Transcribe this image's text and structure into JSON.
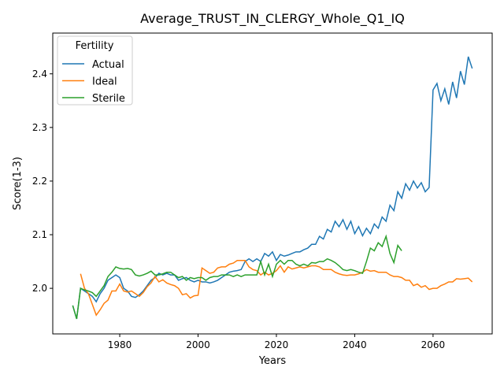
{
  "chart_data": {
    "type": "line",
    "title": "Average_TRUST_IN_CLERGY_Whole_Q1_IQ",
    "xlabel": "Years",
    "ylabel": "Score(1-3)",
    "legend_title": "Fertility",
    "legend": "upper left",
    "x": [
      1968,
      1969,
      1970,
      1971,
      1972,
      1973,
      1974,
      1975,
      1976,
      1977,
      1978,
      1979,
      1980,
      1981,
      1982,
      1983,
      1984,
      1985,
      1986,
      1987,
      1988,
      1989,
      1990,
      1991,
      1992,
      1993,
      1994,
      1995,
      1996,
      1997,
      1998,
      1999,
      2000,
      2001,
      2002,
      2003,
      2004,
      2005,
      2006,
      2007,
      2008,
      2009,
      2010,
      2011,
      2012,
      2013,
      2014,
      2015,
      2016,
      2017,
      2018,
      2019,
      2020,
      2021,
      2022,
      2023,
      2024,
      2025,
      2026,
      2027,
      2028,
      2029,
      2030,
      2031,
      2032,
      2033,
      2034,
      2035,
      2036,
      2037,
      2038,
      2039,
      2040,
      2041,
      2042,
      2043,
      2044,
      2045,
      2046,
      2047,
      2048,
      2049,
      2050,
      2051,
      2052,
      2053,
      2054,
      2055,
      2056,
      2057,
      2058,
      2059,
      2060,
      2061,
      2062,
      2063,
      2064,
      2065,
      2066,
      2067,
      2068,
      2069,
      2070
    ],
    "series": [
      {
        "name": "Actual",
        "color": "#1f77b4",
        "values": [
          1.968,
          1.943,
          2.0,
          1.995,
          1.99,
          1.985,
          1.975,
          1.99,
          2.0,
          2.015,
          2.02,
          2.025,
          2.02,
          2.0,
          1.995,
          1.985,
          1.983,
          1.988,
          1.995,
          2.005,
          2.015,
          2.02,
          2.028,
          2.025,
          2.028,
          2.025,
          2.025,
          2.015,
          2.018,
          2.02,
          2.015,
          2.012,
          2.015,
          2.012,
          2.012,
          2.01,
          2.012,
          2.015,
          2.02,
          2.025,
          2.03,
          2.032,
          2.033,
          2.035,
          2.05,
          2.055,
          2.05,
          2.055,
          2.05,
          2.065,
          2.06,
          2.068,
          2.052,
          2.063,
          2.06,
          2.062,
          2.065,
          2.068,
          2.068,
          2.072,
          2.075,
          2.082,
          2.082,
          2.097,
          2.092,
          2.11,
          2.105,
          2.125,
          2.115,
          2.128,
          2.11,
          2.125,
          2.102,
          2.115,
          2.098,
          2.112,
          2.102,
          2.12,
          2.112,
          2.133,
          2.125,
          2.155,
          2.145,
          2.18,
          2.168,
          2.195,
          2.183,
          2.2,
          2.187,
          2.197,
          2.18,
          2.188,
          2.37,
          2.382,
          2.35,
          2.372,
          2.343,
          2.385,
          2.355,
          2.405,
          2.38,
          2.432,
          2.41
        ]
      },
      {
        "name": "Ideal",
        "color": "#ff7f0e",
        "values": [
          null,
          null,
          2.027,
          2.0,
          1.99,
          1.97,
          1.95,
          1.96,
          1.972,
          1.978,
          1.995,
          1.995,
          2.008,
          1.995,
          1.993,
          1.995,
          1.99,
          1.985,
          1.992,
          2.003,
          2.01,
          2.022,
          2.012,
          2.016,
          2.01,
          2.007,
          2.005,
          2.0,
          1.988,
          1.99,
          1.982,
          1.986,
          1.987,
          2.038,
          2.033,
          2.028,
          2.03,
          2.038,
          2.04,
          2.04,
          2.045,
          2.047,
          2.052,
          2.052,
          2.052,
          2.04,
          2.035,
          2.033,
          2.025,
          2.03,
          2.025,
          2.028,
          2.033,
          2.042,
          2.03,
          2.04,
          2.036,
          2.038,
          2.04,
          2.038,
          2.04,
          2.042,
          2.042,
          2.04,
          2.035,
          2.035,
          2.035,
          2.03,
          2.027,
          2.025,
          2.024,
          2.025,
          2.025,
          2.027,
          2.03,
          2.035,
          2.032,
          2.033,
          2.03,
          2.03,
          2.03,
          2.025,
          2.022,
          2.022,
          2.02,
          2.015,
          2.015,
          2.005,
          2.008,
          2.002,
          2.005,
          1.998,
          2.0,
          2.0,
          2.005,
          2.008,
          2.012,
          2.012,
          2.018,
          2.017,
          2.018,
          2.019,
          2.012
        ]
      },
      {
        "name": "Sterile",
        "color": "#2ca02c",
        "values": [
          1.968,
          1.943,
          2.0,
          1.997,
          1.995,
          1.992,
          1.985,
          1.995,
          2.005,
          2.022,
          2.03,
          2.04,
          2.037,
          2.036,
          2.037,
          2.035,
          2.025,
          2.023,
          2.025,
          2.028,
          2.032,
          2.025,
          2.025,
          2.027,
          2.03,
          2.03,
          2.025,
          2.02,
          2.022,
          2.015,
          2.02,
          2.018,
          2.02,
          2.02,
          2.015,
          2.02,
          2.022,
          2.022,
          2.025,
          2.025,
          2.025,
          2.022,
          2.025,
          2.022,
          2.025,
          2.025,
          2.025,
          2.025,
          2.05,
          2.025,
          2.045,
          2.022,
          2.045,
          2.052,
          2.045,
          2.052,
          2.052,
          2.045,
          2.042,
          2.045,
          2.042,
          2.048,
          2.047,
          2.05,
          2.05,
          2.055,
          2.052,
          2.048,
          2.042,
          2.035,
          2.033,
          2.035,
          2.033,
          2.03,
          2.028,
          2.05,
          2.075,
          2.07,
          2.085,
          2.078,
          2.097,
          2.065,
          2.048,
          2.08,
          2.07,
          null,
          null,
          null,
          null,
          null,
          null,
          null,
          null,
          null,
          null,
          null,
          null,
          null,
          null,
          null,
          null,
          null,
          null
        ]
      }
    ],
    "xlim": [
      1962.9,
      2075.1
    ],
    "xticks": [
      1980,
      2000,
      2020,
      2040,
      2060
    ],
    "ylim": [
      1.915,
      2.476
    ],
    "yticks": [
      {
        "value": 2.0,
        "label": "2.0"
      },
      2.1,
      2.2,
      2.3,
      2.4
    ],
    "grid": false
  }
}
